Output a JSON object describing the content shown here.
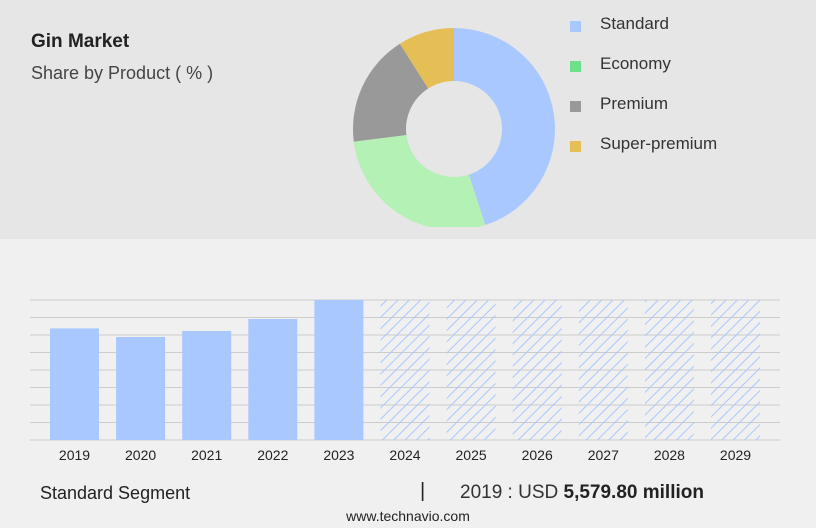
{
  "title": "Gin Market",
  "subtitle": "Share by Product ( % )",
  "colors": {
    "standard": "#a9c8ff",
    "economy": "#b4f1b4",
    "premium": "#999999",
    "super_premium": "#e5bf55",
    "legend_economy": "#6fe08a",
    "top_bg": "#e6e6e6",
    "bottom_bg": "#f0f0f0",
    "hatch": "#a9c8ff"
  },
  "chart_data": [
    {
      "type": "pie",
      "donut": true,
      "legend_position": "right",
      "labels": [
        "Standard",
        "Economy",
        "Premium",
        "Super-premium"
      ],
      "values": [
        45,
        28,
        18,
        9
      ]
    },
    {
      "type": "bar",
      "categories": [
        "2019",
        "2020",
        "2021",
        "2022",
        "2023",
        "2024",
        "2025",
        "2026",
        "2027",
        "2028",
        "2029"
      ],
      "values": [
        5579.8,
        5150,
        5450,
        6050,
        7000,
        null,
        null,
        null,
        null,
        null,
        null
      ],
      "forecast_categories": [
        "2024",
        "2025",
        "2026",
        "2027",
        "2028",
        "2029"
      ],
      "grid": true
    }
  ],
  "footer": {
    "segment_label": "Standard Segment",
    "separator": "|",
    "year_prefix": "2019 : USD",
    "value": "5,579.80 million"
  },
  "source": "www.technavio.com"
}
